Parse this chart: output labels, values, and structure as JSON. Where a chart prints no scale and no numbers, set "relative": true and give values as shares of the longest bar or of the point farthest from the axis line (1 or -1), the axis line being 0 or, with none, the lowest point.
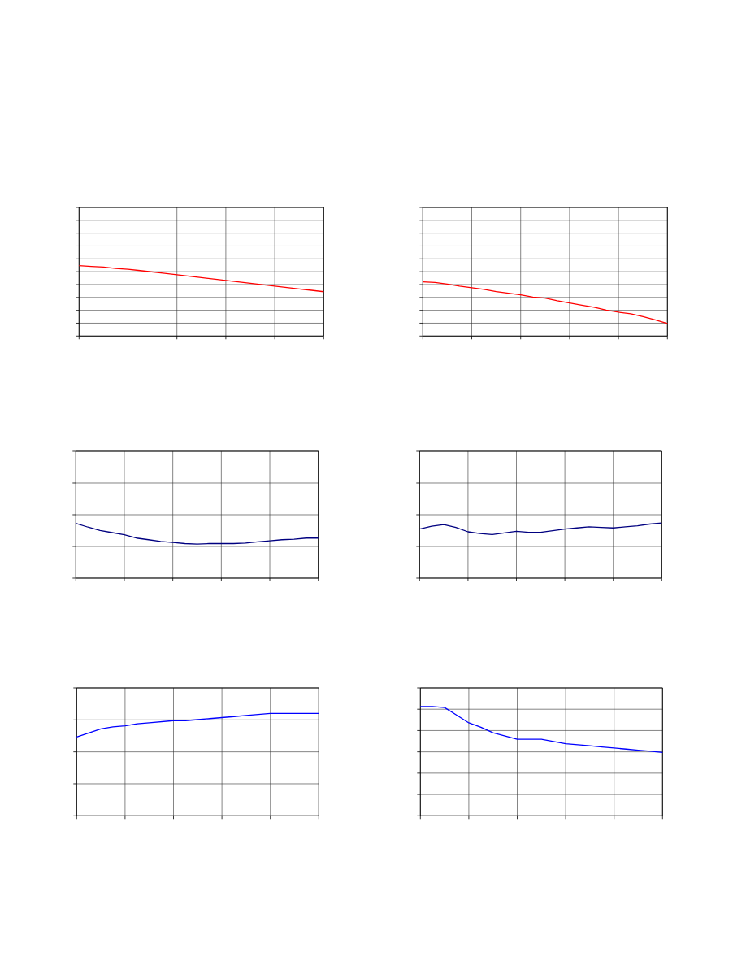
{
  "chart_data": [
    {
      "type": "line",
      "relative": true,
      "grid": true,
      "categories": [
        null,
        null,
        null,
        null,
        null,
        null,
        null,
        null,
        null,
        null,
        null,
        null,
        null,
        null,
        null,
        null,
        null,
        null,
        null,
        null,
        null
      ],
      "series": [
        {
          "color": "#ff0000",
          "values": [
            1,
            0.99,
            0.98,
            0.96,
            0.95,
            0.93,
            0.91,
            0.89,
            0.87,
            0.85,
            0.83,
            0.81,
            0.79,
            0.77,
            0.75,
            0.73,
            0.71,
            0.69,
            0.67,
            0.65,
            0.63
          ]
        }
      ]
    },
    {
      "type": "line",
      "relative": true,
      "grid": true,
      "categories": [
        null,
        null,
        null,
        null,
        null,
        null,
        null,
        null,
        null,
        null,
        null,
        null,
        null,
        null,
        null,
        null,
        null,
        null,
        null,
        null,
        null
      ],
      "series": [
        {
          "color": "#ff0000",
          "values": [
            1,
            0.99,
            0.96,
            0.92,
            0.89,
            0.86,
            0.82,
            0.79,
            0.76,
            0.72,
            0.7,
            0.65,
            0.61,
            0.57,
            0.53,
            0.48,
            0.44,
            0.41,
            0.36,
            0.3,
            0.23
          ]
        }
      ]
    },
    {
      "type": "line",
      "relative": true,
      "grid": true,
      "categories": [
        null,
        null,
        null,
        null,
        null,
        null,
        null,
        null,
        null,
        null,
        null,
        null,
        null,
        null,
        null,
        null,
        null,
        null,
        null,
        null,
        null
      ],
      "series": [
        {
          "color": "#000080",
          "values": [
            1,
            0.93,
            0.87,
            0.83,
            0.79,
            0.73,
            0.7,
            0.67,
            0.65,
            0.63,
            0.62,
            0.63,
            0.63,
            0.63,
            0.64,
            0.66,
            0.68,
            0.7,
            0.71,
            0.73,
            0.73
          ]
        }
      ]
    },
    {
      "type": "line",
      "relative": true,
      "grid": true,
      "categories": [
        null,
        null,
        null,
        null,
        null,
        null,
        null,
        null,
        null,
        null,
        null,
        null,
        null,
        null,
        null,
        null,
        null,
        null,
        null,
        null,
        null
      ],
      "series": [
        {
          "color": "#000080",
          "values": [
            0.89,
            0.94,
            0.97,
            0.92,
            0.84,
            0.81,
            0.79,
            0.82,
            0.85,
            0.83,
            0.83,
            0.86,
            0.89,
            0.91,
            0.93,
            0.92,
            0.91,
            0.93,
            0.95,
            0.98,
            1
          ]
        }
      ]
    },
    {
      "type": "line",
      "relative": true,
      "grid": true,
      "categories": [
        null,
        null,
        null,
        null,
        null,
        null,
        null,
        null,
        null,
        null,
        null,
        null,
        null,
        null,
        null,
        null,
        null,
        null,
        null,
        null,
        null
      ],
      "series": [
        {
          "color": "#0000ff",
          "values": [
            0.77,
            0.81,
            0.85,
            0.87,
            0.88,
            0.9,
            0.91,
            0.92,
            0.93,
            0.93,
            0.94,
            0.95,
            0.96,
            0.97,
            0.98,
            0.99,
            1,
            1,
            1,
            1,
            1
          ]
        }
      ]
    },
    {
      "type": "line",
      "relative": true,
      "grid": true,
      "categories": [
        null,
        null,
        null,
        null,
        null,
        null,
        null,
        null,
        null,
        null,
        null,
        null,
        null,
        null,
        null,
        null,
        null,
        null,
        null,
        null,
        null
      ],
      "series": [
        {
          "color": "#0000ff",
          "values": [
            1,
            1,
            0.99,
            0.92,
            0.85,
            0.81,
            0.76,
            0.73,
            0.7,
            0.7,
            0.7,
            0.68,
            0.66,
            0.65,
            0.64,
            0.63,
            0.62,
            0.61,
            0.6,
            0.59,
            0.58
          ]
        }
      ]
    }
  ]
}
